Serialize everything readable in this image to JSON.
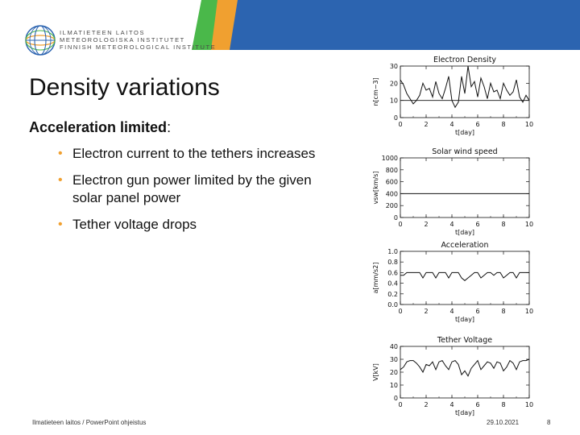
{
  "header": {
    "logo_lines": [
      "ILMATIETEEN LAITOS",
      "METEOROLOGISKA INSTITUTET",
      "FINNISH METEOROLOGICAL INSTITUTE"
    ],
    "colors": {
      "green": "#4ab84a",
      "orange": "#f0a030",
      "blue": "#2c64b0"
    }
  },
  "slide": {
    "title": "Density variations",
    "subhead_bold": "Acceleration limited",
    "subhead_tail": ":",
    "bullets": [
      "Electron current to the tethers increases",
      "Electron gun power limited by the given solar panel power",
      "Tether voltage drops"
    ],
    "bullet_glyph": "•"
  },
  "footer": {
    "left": "Ilmatieteen laitos / PowerPoint ohjeistus",
    "date": "29.10.2021",
    "page": "8"
  },
  "chart_data": [
    {
      "type": "line",
      "title": "Electron Density",
      "xlabel": "t[day]",
      "ylabel": "n[cm−3]",
      "xlim": [
        0,
        10
      ],
      "ylim": [
        0,
        30
      ],
      "xticks": [
        "0",
        "2",
        "4",
        "6",
        "8",
        "10"
      ],
      "yticks": [
        "0",
        "10",
        "20",
        "30"
      ],
      "hline": 10,
      "x": [
        0.0,
        0.25,
        0.5,
        0.75,
        1.0,
        1.25,
        1.5,
        1.75,
        2.0,
        2.25,
        2.5,
        2.75,
        3.0,
        3.25,
        3.5,
        3.75,
        4.0,
        4.25,
        4.5,
        4.75,
        5.0,
        5.25,
        5.5,
        5.75,
        6.0,
        6.25,
        6.5,
        6.75,
        7.0,
        7.25,
        7.5,
        7.75,
        8.0,
        8.25,
        8.5,
        8.75,
        9.0,
        9.25,
        9.5,
        9.75,
        10.0
      ],
      "values": [
        22,
        19,
        14,
        11,
        8,
        10,
        13,
        20,
        16,
        17,
        12,
        21,
        14,
        11,
        17,
        24,
        10,
        6,
        9,
        24,
        14,
        30,
        18,
        21,
        12,
        23,
        18,
        11,
        20,
        15,
        16,
        11,
        20,
        16,
        13,
        15,
        22,
        12,
        9,
        13,
        10
      ]
    },
    {
      "type": "line",
      "title": "Solar wind speed",
      "xlabel": "t[day]",
      "ylabel": "vsw[km/s]",
      "xlim": [
        0,
        10
      ],
      "ylim": [
        0,
        1000
      ],
      "xticks": [
        "0",
        "2",
        "4",
        "6",
        "8",
        "10"
      ],
      "yticks": [
        "0",
        "200",
        "400",
        "600",
        "800",
        "1000"
      ],
      "x": [
        0,
        10
      ],
      "values": [
        400,
        400
      ]
    },
    {
      "type": "line",
      "title": "Acceleration",
      "xlabel": "t[day]",
      "ylabel": "a[mm/s2]",
      "xlim": [
        0,
        10
      ],
      "ylim": [
        0,
        1.0
      ],
      "xticks": [
        "0",
        "2",
        "4",
        "6",
        "8",
        "10"
      ],
      "yticks": [
        "0.0",
        "0.2",
        "0.4",
        "0.6",
        "0.8",
        "1.0"
      ],
      "x": [
        0.0,
        0.25,
        0.5,
        0.75,
        1.0,
        1.25,
        1.5,
        1.75,
        2.0,
        2.25,
        2.5,
        2.75,
        3.0,
        3.25,
        3.5,
        3.75,
        4.0,
        4.25,
        4.5,
        4.75,
        5.0,
        5.25,
        5.5,
        5.75,
        6.0,
        6.25,
        6.5,
        6.75,
        7.0,
        7.25,
        7.5,
        7.75,
        8.0,
        8.25,
        8.5,
        8.75,
        9.0,
        9.25,
        9.5,
        9.75,
        10.0
      ],
      "values": [
        0.55,
        0.55,
        0.6,
        0.6,
        0.6,
        0.6,
        0.6,
        0.5,
        0.6,
        0.6,
        0.6,
        0.5,
        0.6,
        0.6,
        0.6,
        0.5,
        0.6,
        0.6,
        0.6,
        0.5,
        0.45,
        0.5,
        0.55,
        0.6,
        0.6,
        0.5,
        0.55,
        0.6,
        0.6,
        0.55,
        0.6,
        0.6,
        0.5,
        0.55,
        0.6,
        0.6,
        0.5,
        0.6,
        0.6,
        0.6,
        0.6
      ]
    },
    {
      "type": "line",
      "title": "Tether Voltage",
      "xlabel": "t[day]",
      "ylabel": "V[kV]",
      "xlim": [
        0,
        10
      ],
      "ylim": [
        0,
        40
      ],
      "xticks": [
        "0",
        "2",
        "4",
        "6",
        "8",
        "10"
      ],
      "yticks": [
        "0",
        "10",
        "20",
        "30",
        "40"
      ],
      "x": [
        0.0,
        0.25,
        0.5,
        0.75,
        1.0,
        1.25,
        1.5,
        1.75,
        2.0,
        2.25,
        2.5,
        2.75,
        3.0,
        3.25,
        3.5,
        3.75,
        4.0,
        4.25,
        4.5,
        4.75,
        5.0,
        5.25,
        5.5,
        5.75,
        6.0,
        6.25,
        6.5,
        6.75,
        7.0,
        7.25,
        7.5,
        7.75,
        8.0,
        8.25,
        8.5,
        8.75,
        9.0,
        9.25,
        9.5,
        9.75,
        10.0
      ],
      "values": [
        22,
        24,
        28,
        29,
        29,
        27,
        24,
        20,
        26,
        25,
        28,
        22,
        28,
        29,
        25,
        22,
        28,
        29,
        26,
        18,
        21,
        17,
        23,
        26,
        29,
        22,
        25,
        28,
        27,
        23,
        28,
        27,
        21,
        24,
        29,
        27,
        22,
        28,
        29,
        29,
        30
      ]
    }
  ]
}
